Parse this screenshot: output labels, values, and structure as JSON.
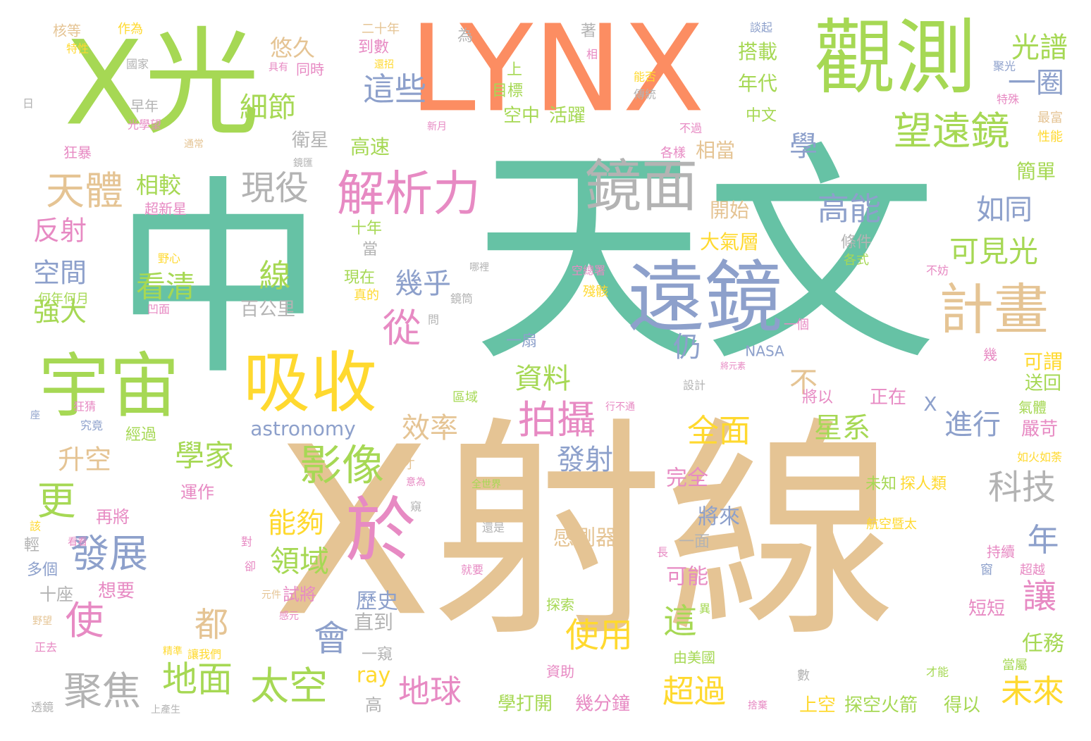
{
  "palette": {
    "green": "#66c2a5",
    "tan": "#e5c494",
    "orange": "#fc8d62",
    "lime": "#a6d854",
    "yellow": "#ffd92f",
    "blue": "#8da0cb",
    "pink": "#e78ac3",
    "gray": "#b3b3b3"
  },
  "words": [
    "中",
    "天文",
    "X射線",
    "LYNX",
    "X光",
    "觀測",
    "遠鏡",
    "宇宙",
    "鏡面",
    "吸收",
    "解析力",
    "計畫",
    "於",
    "望遠鏡",
    "天體",
    "拍攝",
    "影像",
    "聚焦",
    "地面",
    "太空",
    "發展",
    "使",
    "會",
    "現役",
    "線",
    "這些",
    "細節",
    "學",
    "光譜",
    "一圈",
    "高能",
    "如同",
    "可見光",
    "看清",
    "幾乎",
    "從",
    "資料",
    "效率",
    "全面",
    "星系",
    "進行",
    "科技",
    "年",
    "讓",
    "未來",
    "超過",
    "這",
    "使用",
    "地球",
    "發射",
    "學家",
    "領域",
    "能夠",
    "都",
    "更",
    "升空",
    "空間",
    "強大",
    "反射",
    "仍",
    "不",
    "astronomy",
    "相較",
    "悠久",
    "大氣層",
    "年代",
    "搭載",
    "高速",
    "相當",
    "開始",
    "衛星",
    "歷史",
    "直到",
    "ray",
    "感測器",
    "完全",
    "將來",
    "可能",
    "任務",
    "可謂",
    "送回",
    "簡單",
    "空中",
    "活躍",
    "目標",
    "中文",
    "NASA",
    "一扇",
    "一窺",
    "百公里",
    "條件",
    "各式",
    "十年",
    "當",
    "現在",
    "真的",
    "鏡筒",
    "問",
    "區域",
    "設計",
    "將以",
    "正在",
    "氣體",
    "嚴苛",
    "如火如荼",
    "未知",
    "探人類",
    "航空暨太",
    "持續",
    "超越",
    "窗",
    "短短",
    "當屬",
    "才能",
    "數",
    "上空",
    "探空火箭",
    "得以",
    "幾分鐘",
    "學打開",
    "高",
    "資助",
    "探索",
    "由美國",
    "異",
    "精準",
    "讓我們",
    "上產生",
    "透鏡",
    "正去",
    "野望",
    "感元",
    "元件",
    "卻",
    "對",
    "試將",
    "十座",
    "想要",
    "多個",
    "輕",
    "該",
    "運作",
    "再將",
    "看看",
    "意為",
    "窺",
    "才",
    "全世界",
    "還是",
    "就要",
    "一面",
    "長",
    "一個",
    "幾",
    "不妨",
    "空總署",
    "殘骸",
    "哪裡",
    "野心",
    "凹面",
    "何年何月",
    "超新星",
    "通常",
    "鏡匯",
    "各樣",
    "不過",
    "最富",
    "性能",
    "特殊",
    "聚光",
    "傳統",
    "能否",
    "上",
    "相",
    "著",
    "為",
    "二十年",
    "到數",
    "作為",
    "核等",
    "特性",
    "國家",
    "具有",
    "還招",
    "同時",
    "早年",
    "光學望",
    "狂暴",
    "新月",
    "談起",
    "日",
    "座",
    "究竟",
    "經過",
    "捨棄",
    "行不通",
    "將元素",
    "X",
    "狂猜"
  ]
}
